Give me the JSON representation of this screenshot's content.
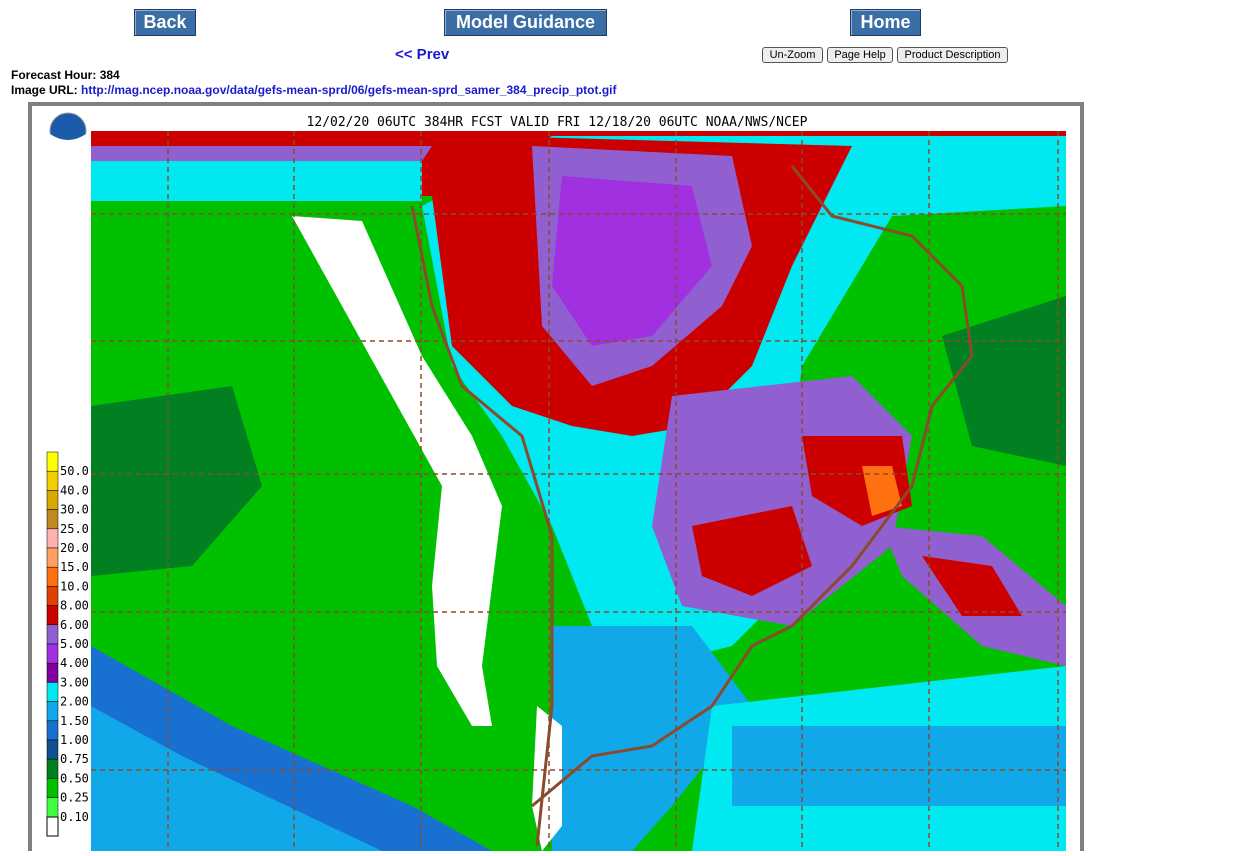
{
  "nav": {
    "back": "Back",
    "model_guidance": "Model Guidance",
    "home": "Home",
    "prev": "<< Prev",
    "un_zoom": "Un-Zoom",
    "page_help": "Page Help",
    "product_description": "Product Description"
  },
  "info": {
    "forecast_hour_label": "Forecast Hour:",
    "forecast_hour": "384",
    "image_url_label": "Image URL:",
    "image_url": "http://mag.ncep.noaa.gov/data/gefs-mean-sprd/06/gefs-mean-sprd_samer_384_precip_ptot.gif"
  },
  "map": {
    "title": "12/02/20 06UTC 384HR FCST VALID FRI 12/18/20 06UTC NOAA/NWS/NCEP",
    "legend": [
      {
        "label": "50.0",
        "color": "#ffff00"
      },
      {
        "label": "40.0",
        "color": "#f0d000"
      },
      {
        "label": "30.0",
        "color": "#d8a800"
      },
      {
        "label": "25.0",
        "color": "#c08820"
      },
      {
        "label": "20.0",
        "color": "#ffb0b0"
      },
      {
        "label": "15.0",
        "color": "#ffa060"
      },
      {
        "label": "10.0",
        "color": "#ff7010"
      },
      {
        "label": "8.00",
        "color": "#e04000"
      },
      {
        "label": "6.00",
        "color": "#cc0000"
      },
      {
        "label": "5.00",
        "color": "#9060d0"
      },
      {
        "label": "4.00",
        "color": "#a030e0"
      },
      {
        "label": "3.00",
        "color": "#8000a0"
      },
      {
        "label": "2.00",
        "color": "#00e8f0"
      },
      {
        "label": "1.50",
        "color": "#10a8e8"
      },
      {
        "label": "1.00",
        "color": "#1870d0"
      },
      {
        "label": "0.75",
        "color": "#105090"
      },
      {
        "label": "0.50",
        "color": "#008020"
      },
      {
        "label": "0.25",
        "color": "#00c000"
      },
      {
        "label": "0.10",
        "color": "#40ff40"
      }
    ]
  }
}
